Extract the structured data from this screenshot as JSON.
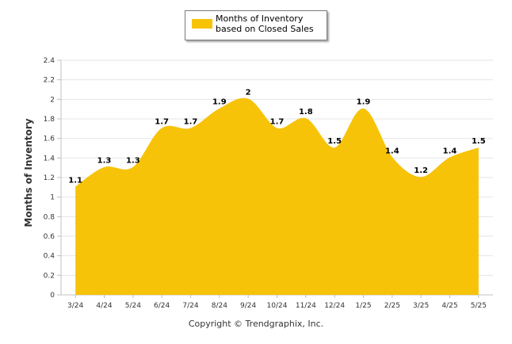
{
  "legend": {
    "label": "Months of Inventory based on Closed Sales",
    "color": "#f7c309"
  },
  "ylabel": "Months of Inventory",
  "credit": "Copyright © Trendgraphix, Inc.",
  "chart_data": {
    "type": "area",
    "title": "",
    "xlabel": "",
    "ylabel": "Months of Inventory",
    "categories": [
      "3/24",
      "4/24",
      "5/24",
      "6/24",
      "7/24",
      "8/24",
      "9/24",
      "10/24",
      "11/24",
      "12/24",
      "1/25",
      "2/25",
      "3/25",
      "4/25",
      "5/25"
    ],
    "series": [
      {
        "name": "Months of Inventory based on Closed Sales",
        "values": [
          1.1,
          1.3,
          1.3,
          1.7,
          1.7,
          1.9,
          2,
          1.7,
          1.8,
          1.5,
          1.9,
          1.4,
          1.2,
          1.4,
          1.5
        ],
        "data_labels": [
          "1.1",
          "1.3",
          "1.3",
          "1.7",
          "1.7",
          "1.9",
          "2",
          "1.7",
          "1.8",
          "1.5",
          "1.9",
          "1.4",
          "1.2",
          "1.4",
          "1.5"
        ]
      }
    ],
    "yticks": [
      "0",
      "0.2",
      "0.4",
      "0.6",
      "0.8",
      "1",
      "1.2",
      "1.4",
      "1.6",
      "1.8",
      "2",
      "2.2",
      "2.4"
    ],
    "ylim": [
      0,
      2.4
    ],
    "grid": true,
    "legend_position": "top",
    "fill_color": "#f7c309"
  }
}
